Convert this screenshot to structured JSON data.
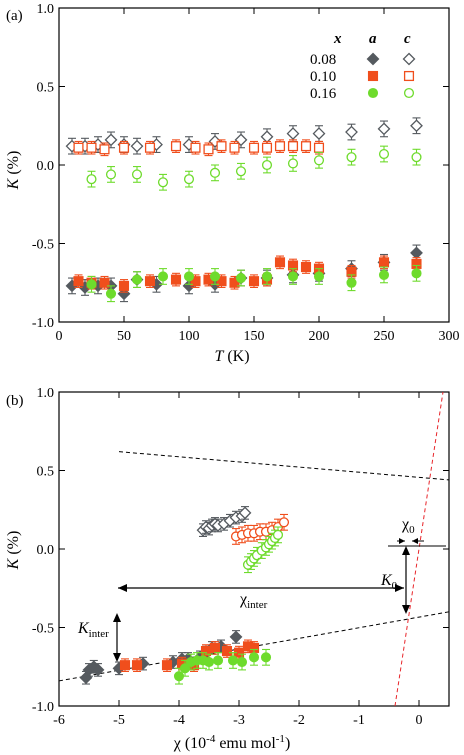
{
  "chart_data": [
    {
      "panel_label": "(a)",
      "type": "scatter",
      "xlabel_main": "T",
      "xlabel_unit": " (K)",
      "ylabel_main": "K",
      "ylabel_unit": " (%)",
      "xlim": [
        0,
        300
      ],
      "ylim": [
        -1.0,
        1.0
      ],
      "xticks": [
        0,
        50,
        100,
        150,
        200,
        250,
        300
      ],
      "yticks": [
        -1.0,
        -0.5,
        0.0,
        0.5,
        1.0
      ],
      "xtick_labels": [
        "0",
        "50",
        "100",
        "150",
        "200",
        "250",
        "300"
      ],
      "ytick_labels": [
        "-1.0",
        "-0.5",
        "0.0",
        "0.5",
        "1.0"
      ],
      "legend": {
        "headers": [
          "x",
          "a",
          "c"
        ],
        "rows": [
          "0.08",
          "0.10",
          "0.16"
        ]
      },
      "series": [
        {
          "name": "0.08 a",
          "color": "#555a5f",
          "marker": "diamond",
          "fill": true,
          "x": [
            10,
            20,
            30,
            40,
            50,
            60,
            75,
            100,
            120,
            140,
            160,
            180,
            200,
            225,
            250,
            275
          ],
          "y": [
            -0.77,
            -0.78,
            -0.77,
            -0.77,
            -0.82,
            -0.73,
            -0.76,
            -0.77,
            -0.76,
            -0.72,
            -0.72,
            -0.7,
            -0.69,
            -0.66,
            -0.62,
            -0.56
          ],
          "err": 0.05
        },
        {
          "name": "0.08 c",
          "color": "#555a5f",
          "marker": "diamond",
          "fill": false,
          "x": [
            10,
            20,
            30,
            40,
            50,
            60,
            75,
            100,
            120,
            140,
            160,
            180,
            200,
            225,
            250,
            275
          ],
          "y": [
            0.12,
            0.12,
            0.13,
            0.16,
            0.13,
            0.12,
            0.13,
            0.13,
            0.15,
            0.16,
            0.18,
            0.2,
            0.2,
            0.21,
            0.23,
            0.25
          ],
          "err": 0.05
        },
        {
          "name": "0.10 a",
          "color": "#f04e1c",
          "marker": "square",
          "fill": true,
          "x": [
            15,
            25,
            35,
            50,
            70,
            90,
            105,
            115,
            125,
            135,
            150,
            160,
            170,
            180,
            190,
            200,
            225,
            250,
            275
          ],
          "y": [
            -0.74,
            -0.75,
            -0.75,
            -0.77,
            -0.74,
            -0.73,
            -0.74,
            -0.73,
            -0.74,
            -0.75,
            -0.74,
            -0.73,
            -0.62,
            -0.64,
            -0.65,
            -0.66,
            -0.68,
            -0.62,
            -0.63
          ],
          "err": 0.04
        },
        {
          "name": "0.10 c",
          "color": "#f04e1c",
          "marker": "square",
          "fill": false,
          "x": [
            15,
            25,
            35,
            50,
            70,
            90,
            105,
            115,
            125,
            135,
            150,
            160,
            170,
            180,
            190,
            200
          ],
          "y": [
            0.11,
            0.11,
            0.1,
            0.11,
            0.11,
            0.12,
            0.11,
            0.1,
            0.12,
            0.11,
            0.11,
            0.11,
            0.12,
            0.12,
            0.12,
            0.11
          ],
          "err": 0.04
        },
        {
          "name": "0.16 a",
          "color": "#6edb2c",
          "marker": "circle",
          "fill": true,
          "x": [
            25,
            40,
            60,
            80,
            100,
            120,
            140,
            160,
            180,
            200,
            225,
            250,
            275
          ],
          "y": [
            -0.76,
            -0.82,
            -0.73,
            -0.71,
            -0.71,
            -0.71,
            -0.72,
            -0.71,
            -0.71,
            -0.71,
            -0.75,
            -0.7,
            -0.69
          ],
          "err": 0.05
        },
        {
          "name": "0.16 c",
          "color": "#6edb2c",
          "marker": "circle",
          "fill": false,
          "x": [
            25,
            40,
            60,
            80,
            100,
            120,
            140,
            160,
            180,
            200,
            225,
            250,
            275
          ],
          "y": [
            -0.09,
            -0.06,
            -0.06,
            -0.11,
            -0.09,
            -0.05,
            -0.04,
            0.0,
            0.01,
            0.03,
            0.05,
            0.07,
            0.05
          ],
          "err": 0.05
        }
      ]
    },
    {
      "panel_label": "(b)",
      "type": "scatter",
      "xlabel_main": "χ",
      "xlabel_unit": " (10",
      "xlabel_exp1": "-4",
      "xlabel_mid": " emu mol",
      "xlabel_exp2": "-1",
      "xlabel_end": ")",
      "ylabel_main": "K",
      "ylabel_unit": " (%)",
      "xlim": [
        -6,
        0.5
      ],
      "ylim": [
        -1.0,
        1.0
      ],
      "xticks": [
        -6,
        -5,
        -4,
        -3,
        -2,
        -1,
        0
      ],
      "yticks": [
        -1.0,
        -0.5,
        0.0,
        0.5,
        1.0
      ],
      "xtick_labels": [
        "-6",
        "-5",
        "-4",
        "-3",
        "-2",
        "-1",
        "0"
      ],
      "ytick_labels": [
        "-1.0",
        "-0.5",
        "0.0",
        "0.5",
        "1.0"
      ],
      "series": [
        {
          "name": "0.08 a",
          "color": "#555a5f",
          "marker": "diamond",
          "fill": true,
          "x": [
            -5.55,
            -5.5,
            -5.42,
            -5.35,
            -5.0,
            -4.6,
            -4.1,
            -3.95,
            -3.85,
            -3.65,
            -3.55,
            -3.45,
            -3.3,
            -3.05
          ],
          "y": [
            -0.82,
            -0.77,
            -0.75,
            -0.77,
            -0.76,
            -0.73,
            -0.72,
            -0.7,
            -0.7,
            -0.69,
            -0.66,
            -0.63,
            -0.62,
            -0.56
          ],
          "err": 0.04
        },
        {
          "name": "0.08 c",
          "color": "#555a5f",
          "marker": "diamond",
          "fill": false,
          "x": [
            -3.6,
            -3.55,
            -3.5,
            -3.45,
            -3.4,
            -3.35,
            -3.25,
            -3.15,
            -3.05,
            -2.95,
            -2.9
          ],
          "y": [
            0.12,
            0.14,
            0.13,
            0.15,
            0.16,
            0.15,
            0.16,
            0.18,
            0.2,
            0.21,
            0.23
          ],
          "err": 0.04
        },
        {
          "name": "0.10 a",
          "color": "#f04e1c",
          "marker": "square",
          "fill": true,
          "x": [
            -4.9,
            -4.7,
            -4.2,
            -3.95,
            -3.75,
            -3.55,
            -3.4,
            -3.2,
            -3.0,
            -2.85,
            -2.75
          ],
          "y": [
            -0.74,
            -0.74,
            -0.74,
            -0.73,
            -0.74,
            -0.65,
            -0.63,
            -0.65,
            -0.66,
            -0.62,
            -0.63
          ],
          "err": 0.04
        },
        {
          "name": "0.10 c",
          "color": "#f04e1c",
          "marker": "circle",
          "fill": false,
          "x": [
            -3.05,
            -2.95,
            -2.85,
            -2.75,
            -2.65,
            -2.55,
            -2.45,
            -2.35,
            -2.25
          ],
          "y": [
            0.08,
            0.09,
            0.1,
            0.1,
            0.11,
            0.11,
            0.12,
            0.14,
            0.17
          ],
          "err": 0.05
        },
        {
          "name": "0.16 a",
          "color": "#6edb2c",
          "marker": "circle",
          "fill": true,
          "x": [
            -4.0,
            -3.9,
            -3.8,
            -3.7,
            -3.6,
            -3.5,
            -3.35,
            -3.1,
            -2.95,
            -2.75,
            -2.55
          ],
          "y": [
            -0.81,
            -0.76,
            -0.72,
            -0.71,
            -0.71,
            -0.72,
            -0.71,
            -0.71,
            -0.72,
            -0.69,
            -0.69
          ],
          "err": 0.05
        },
        {
          "name": "0.16 c",
          "color": "#6edb2c",
          "marker": "circle",
          "fill": false,
          "x": [
            -2.85,
            -2.8,
            -2.75,
            -2.7,
            -2.62,
            -2.55,
            -2.5,
            -2.45,
            -2.4,
            -2.35
          ],
          "y": [
            -0.1,
            -0.08,
            -0.06,
            -0.04,
            -0.01,
            0.01,
            0.03,
            0.05,
            0.07,
            0.09
          ],
          "err": 0.05
        }
      ],
      "fit_lines": [
        {
          "style": "dashed",
          "color": "#000000",
          "x": [
            -5.0,
            0.5
          ],
          "y": [
            0.62,
            0.44
          ]
        },
        {
          "style": "dashed",
          "color": "#000000",
          "x": [
            -6.0,
            0.5
          ],
          "y": [
            -0.84,
            -0.4
          ]
        },
        {
          "style": "dashed",
          "color": "#e8252a",
          "x": [
            -0.4,
            0.4
          ],
          "y": [
            -1.0,
            1.0
          ]
        }
      ],
      "annotations": {
        "chi_inter_main": "χ",
        "chi_inter_sub": "inter",
        "chi0_main": "χ",
        "chi0_sub": "0",
        "K0_main": "K",
        "K0_sub": "0",
        "Kinter_main": "K",
        "Kinter_sub": "inter"
      }
    }
  ]
}
